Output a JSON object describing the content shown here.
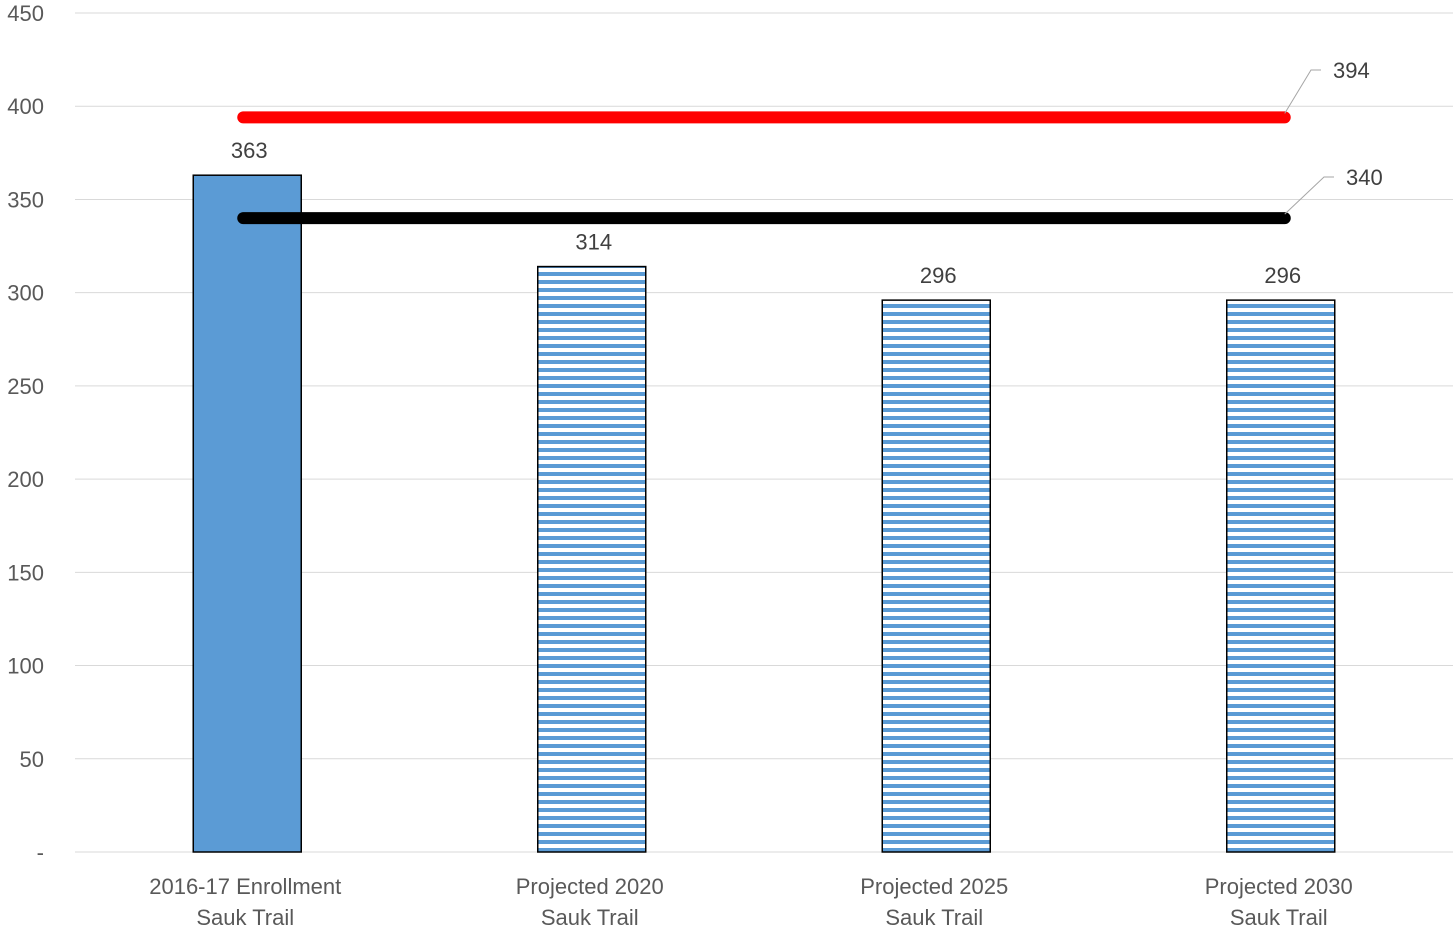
{
  "chart_data": {
    "type": "bar",
    "categories": [
      [
        "2016-17 Enrollment",
        "Sauk Trail"
      ],
      [
        "Projected 2020",
        "Sauk Trail"
      ],
      [
        "Projected 2025",
        "Sauk Trail"
      ],
      [
        "Projected 2030",
        "Sauk Trail"
      ]
    ],
    "values": [
      363,
      314,
      296,
      296
    ],
    "value_labels": [
      "363",
      "314",
      "296",
      "296"
    ],
    "bar_styles": [
      "solid",
      "striped",
      "striped",
      "striped"
    ],
    "reference_lines": [
      {
        "value": 394,
        "label": "394",
        "color": "#ff0000"
      },
      {
        "value": 340,
        "label": "340",
        "color": "#000000"
      }
    ],
    "ylim": [
      0,
      450
    ],
    "yticks": [
      0,
      50,
      100,
      150,
      200,
      250,
      300,
      350,
      400,
      450
    ],
    "ytick_labels": [
      "-",
      "50",
      "100",
      "150",
      "200",
      "250",
      "300",
      "350",
      "400",
      "450"
    ],
    "grid": true,
    "colors": {
      "bar": "#5b9bd5",
      "grid": "#d9d9d9",
      "axis": "#d9d9d9"
    }
  }
}
